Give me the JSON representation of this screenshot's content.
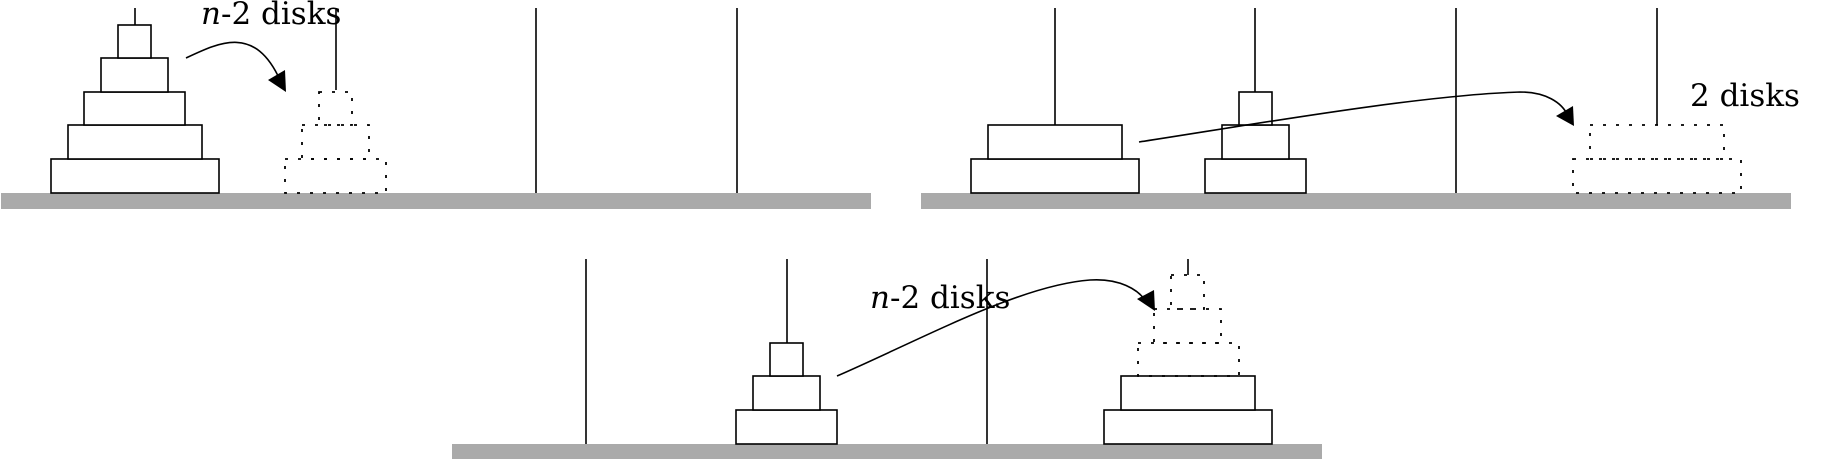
{
  "colors": {
    "base": "#aaaaaa",
    "ink": "#000000",
    "background": "#ffffff"
  },
  "panels": [
    {
      "id": "step-1",
      "label": {
        "variable": "n",
        "rest": "-2 disks"
      },
      "arrow": "peg-1-to-peg-2"
    },
    {
      "id": "step-2",
      "label": {
        "variable": "",
        "rest": "2 disks"
      },
      "arrow": "peg-1-to-peg-4"
    },
    {
      "id": "step-3",
      "label": {
        "variable": "n",
        "rest": "-2 disks"
      },
      "arrow": "peg-2-to-peg-4"
    }
  ]
}
